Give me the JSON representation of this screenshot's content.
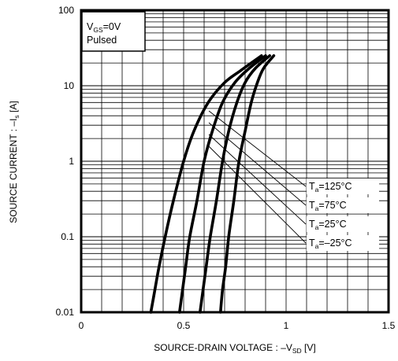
{
  "chart_data": {
    "type": "line",
    "title": "",
    "xlabel": {
      "main": "SOURCE-DRAIN VOLTAGE : –V",
      "sub": "SD",
      "tail": " [V]"
    },
    "ylabel": {
      "main": "SOURCE CURRENT : –I",
      "sub": "s",
      "tail": " [A]"
    },
    "xlim": [
      0,
      1.5
    ],
    "ylim": [
      0.01,
      100
    ],
    "y_scale": "log",
    "grid": true,
    "x_ticks": [
      {
        "value": 0,
        "label": "0"
      },
      {
        "value": 0.5,
        "label": "0.5"
      },
      {
        "value": 1,
        "label": "1"
      },
      {
        "value": 1.5,
        "label": "1.5"
      }
    ],
    "y_ticks": [
      {
        "value": 0.01,
        "label": "0.01"
      },
      {
        "value": 0.1,
        "label": "0.1"
      },
      {
        "value": 1,
        "label": "1"
      },
      {
        "value": 10,
        "label": "10"
      },
      {
        "value": 100,
        "label": "100"
      }
    ],
    "conditions": {
      "line1_main": "V",
      "line1_sub": "GS",
      "line1_tail": "=0V",
      "line2": "Pulsed"
    },
    "series": [
      {
        "name": {
          "main": "T",
          "sub": "a",
          "tail": "=125°C"
        },
        "points": [
          [
            0.34,
            0.01
          ],
          [
            0.36,
            0.02
          ],
          [
            0.38,
            0.04
          ],
          [
            0.41,
            0.1
          ],
          [
            0.45,
            0.3
          ],
          [
            0.5,
            1
          ],
          [
            0.55,
            2.5
          ],
          [
            0.62,
            6
          ],
          [
            0.7,
            11
          ],
          [
            0.78,
            16
          ],
          [
            0.88,
            25
          ]
        ]
      },
      {
        "name": {
          "main": "T",
          "sub": "a",
          "tail": "=75°C"
        },
        "points": [
          [
            0.48,
            0.01
          ],
          [
            0.495,
            0.02
          ],
          [
            0.51,
            0.04
          ],
          [
            0.53,
            0.1
          ],
          [
            0.565,
            0.3
          ],
          [
            0.6,
            1
          ],
          [
            0.64,
            2.5
          ],
          [
            0.69,
            6
          ],
          [
            0.75,
            11
          ],
          [
            0.82,
            17
          ],
          [
            0.9,
            25
          ]
        ]
      },
      {
        "name": {
          "main": "T",
          "sub": "a",
          "tail": "=25°C"
        },
        "points": [
          [
            0.58,
            0.01
          ],
          [
            0.595,
            0.02
          ],
          [
            0.61,
            0.04
          ],
          [
            0.63,
            0.1
          ],
          [
            0.66,
            0.3
          ],
          [
            0.69,
            1
          ],
          [
            0.72,
            2.5
          ],
          [
            0.76,
            6
          ],
          [
            0.8,
            11
          ],
          [
            0.85,
            17
          ],
          [
            0.92,
            25
          ]
        ]
      },
      {
        "name": {
          "main": "T",
          "sub": "a",
          "tail": "=–25°C"
        },
        "points": [
          [
            0.68,
            0.01
          ],
          [
            0.69,
            0.02
          ],
          [
            0.705,
            0.04
          ],
          [
            0.72,
            0.1
          ],
          [
            0.745,
            0.3
          ],
          [
            0.77,
            1
          ],
          [
            0.8,
            2.5
          ],
          [
            0.83,
            6
          ],
          [
            0.86,
            11
          ],
          [
            0.89,
            17
          ],
          [
            0.94,
            25
          ]
        ]
      }
    ],
    "legend_placement": "right, labels with leader lines"
  }
}
